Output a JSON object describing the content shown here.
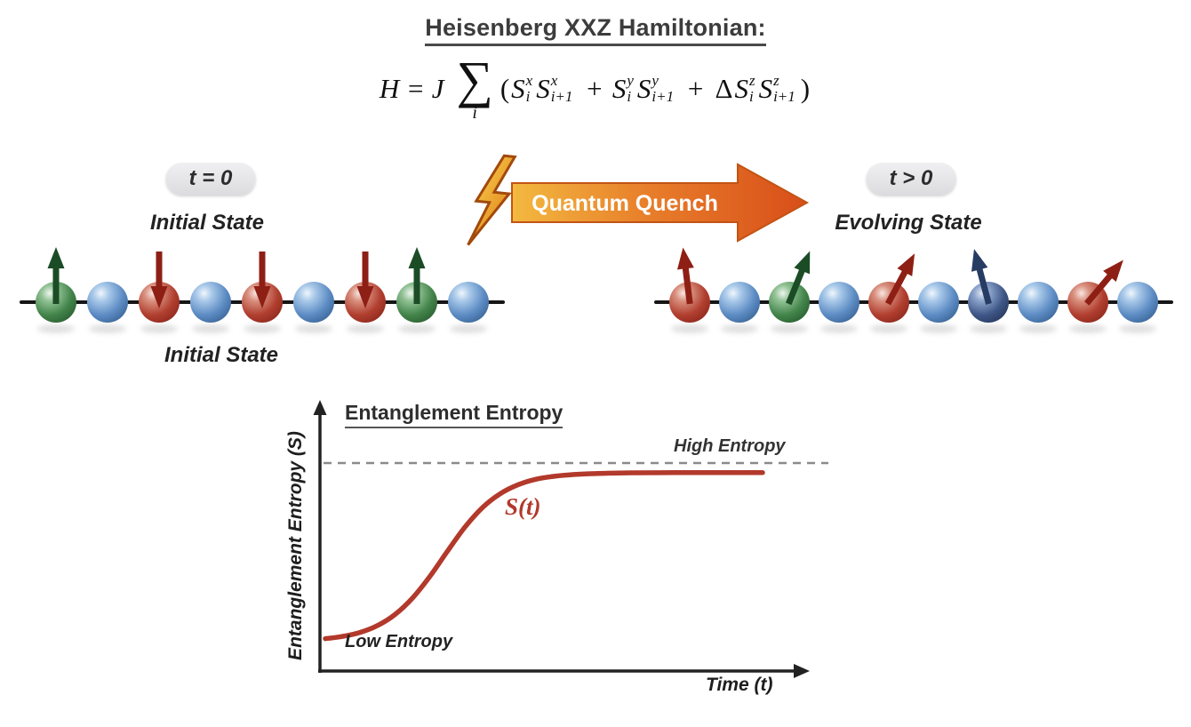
{
  "header": {
    "title": "Heisenberg XXZ Hamiltonian:"
  },
  "equation": {
    "prefix": "H = J",
    "sum_symbol": "∑",
    "sum_index": "i",
    "tokens": [
      {
        "type": "text",
        "v": "(",
        "upright": true
      },
      {
        "type": "var",
        "base": "S",
        "sup": "x",
        "sub": "i"
      },
      {
        "type": "var",
        "base": "S",
        "sup": "x",
        "sub": "i+1"
      },
      {
        "type": "text",
        "v": " + "
      },
      {
        "type": "var",
        "base": "S",
        "sup": "y",
        "sub": "i"
      },
      {
        "type": "var",
        "base": "S",
        "sup": "y",
        "sub": "i+1"
      },
      {
        "type": "text",
        "v": " + "
      },
      {
        "type": "text",
        "v": "Δ",
        "upright": true
      },
      {
        "type": "var",
        "base": "S",
        "sup": "z",
        "sub": "i"
      },
      {
        "type": "var",
        "base": "S",
        "sup": "z",
        "sub": "i+1"
      },
      {
        "type": "text",
        "v": ")",
        "upright": true
      }
    ]
  },
  "left_panel": {
    "time_badge": "t = 0",
    "state_label": "Initial State",
    "caption": "Initial State",
    "spheres": [
      {
        "color": "green",
        "arrow": "up",
        "tilt": 0
      },
      {
        "color": "blue"
      },
      {
        "color": "red",
        "arrow": "down",
        "tilt": 0
      },
      {
        "color": "blue"
      },
      {
        "color": "red",
        "arrow": "down",
        "tilt": 0
      },
      {
        "color": "blue"
      },
      {
        "color": "red",
        "arrow": "down",
        "tilt": 0
      },
      {
        "color": "green",
        "arrow": "up",
        "tilt": 0
      },
      {
        "color": "blue"
      }
    ]
  },
  "quench": {
    "label": "Quantum Quench"
  },
  "right_panel": {
    "time_badge": "t > 0",
    "state_label": "Evolving State",
    "spheres": [
      {
        "color": "red",
        "arrow": "up",
        "tilt": -7
      },
      {
        "color": "blue"
      },
      {
        "color": "green",
        "arrow": "up",
        "tilt": 22
      },
      {
        "color": "blue"
      },
      {
        "color": "red",
        "arrow": "up",
        "tilt": 28
      },
      {
        "color": "blue"
      },
      {
        "color": "navy",
        "arrow": "up",
        "tilt": -15
      },
      {
        "color": "blue"
      },
      {
        "color": "red",
        "arrow": "up",
        "tilt": 40
      },
      {
        "color": "blue"
      }
    ]
  },
  "palette": {
    "arrow": {
      "green": "#1b4c26",
      "red": "#8e1f15",
      "navy": "#273c63"
    },
    "quench_gradient": [
      "#f3b93f",
      "#d84e19"
    ],
    "curve_color": "#b2392b"
  },
  "chart": {
    "title": "Entanglement Entropy",
    "ylabel": "Entanglement Entropy (S)",
    "xlabel": "Time (t)",
    "curve_label": "S(t)",
    "high_entropy_label": "High Entropy",
    "low_entropy_label": "Low Entropy"
  },
  "chart_data": {
    "type": "line",
    "title": "Entanglement Entropy",
    "xlabel": "Time (t)",
    "ylabel": "Entanglement Entropy (S)",
    "xlim": [
      0,
      10
    ],
    "ylim": [
      0,
      1.1
    ],
    "grid": false,
    "legend": false,
    "asymptote": {
      "y": 1.0,
      "label": "High Entropy",
      "style": "dashed"
    },
    "series": [
      {
        "name": "S(t)",
        "color": "#b2392b",
        "x": [
          0,
          0.4,
          0.8,
          1.2,
          1.6,
          2.0,
          2.4,
          2.8,
          3.2,
          3.6,
          4.0,
          4.4,
          4.8,
          5.2,
          5.6,
          6.0,
          6.5,
          7.0,
          8.0,
          9.0,
          10.0
        ],
        "y": [
          0.085,
          0.097,
          0.118,
          0.154,
          0.212,
          0.298,
          0.412,
          0.543,
          0.668,
          0.769,
          0.84,
          0.886,
          0.915,
          0.93,
          0.939,
          0.944,
          0.947,
          0.949,
          0.95,
          0.95,
          0.95
        ]
      }
    ],
    "annotations": [
      {
        "text": "S(t)",
        "x": 4.2,
        "y": 0.66,
        "color": "#b2392b"
      },
      {
        "text": "Low Entropy",
        "x": 0.6,
        "y": 0.1
      },
      {
        "text": "High Entropy",
        "x": 8.6,
        "y": 1.05
      }
    ]
  }
}
